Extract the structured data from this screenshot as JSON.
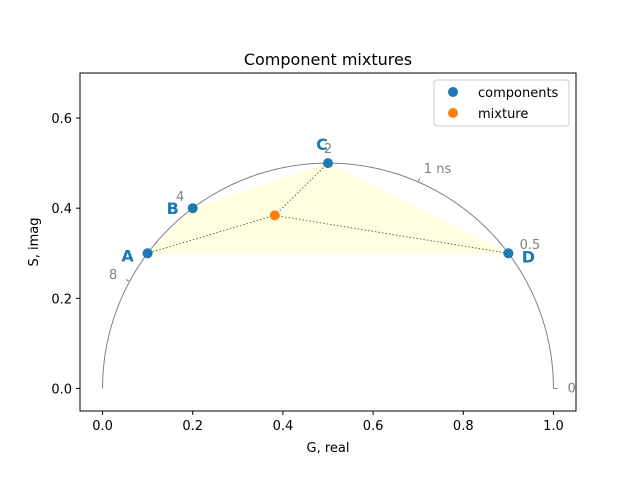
{
  "chart_data": {
    "type": "scatter",
    "title": "Component mixtures",
    "xlabel": "G, real",
    "ylabel": "S, imag",
    "xlim": [
      -0.05,
      1.05
    ],
    "ylim": [
      -0.05,
      0.7
    ],
    "xticks": [
      0.0,
      0.2,
      0.4,
      0.6,
      0.8,
      1.0
    ],
    "xtick_labels": [
      "0.0",
      "0.2",
      "0.4",
      "0.6",
      "0.8",
      "1.0"
    ],
    "yticks": [
      0.0,
      0.2,
      0.4,
      0.6
    ],
    "ytick_labels": [
      "0.0",
      "0.2",
      "0.4",
      "0.6"
    ],
    "grid": false,
    "legend": {
      "position": "upper-right",
      "entries": [
        "components",
        "mixture"
      ]
    },
    "colors": {
      "components": "#1f77b4",
      "mixture": "#ff7f0e",
      "hull_fill": "#ffffe0",
      "semicircle": "#808080"
    },
    "series": [
      {
        "name": "components",
        "points": [
          {
            "label": "A",
            "x": 0.1,
            "y": 0.3
          },
          {
            "label": "B",
            "x": 0.2,
            "y": 0.4
          },
          {
            "label": "C",
            "x": 0.5,
            "y": 0.5
          },
          {
            "label": "D",
            "x": 0.9,
            "y": 0.3
          }
        ]
      },
      {
        "name": "mixture",
        "points": [
          {
            "x": 0.382,
            "y": 0.384
          }
        ]
      }
    ],
    "hull_order": [
      "A",
      "B",
      "C",
      "D"
    ],
    "mixture_links": [
      "A",
      "C",
      "D"
    ],
    "lifetime_ticks": [
      {
        "label": "0",
        "G": 1.0
      },
      {
        "label": "0.5",
        "G": 0.9
      },
      {
        "label": "1 ns",
        "G": 0.7
      },
      {
        "label": "2",
        "G": 0.5
      },
      {
        "label": "4",
        "G": 0.2
      },
      {
        "label": "8",
        "G": 0.06
      }
    ]
  }
}
